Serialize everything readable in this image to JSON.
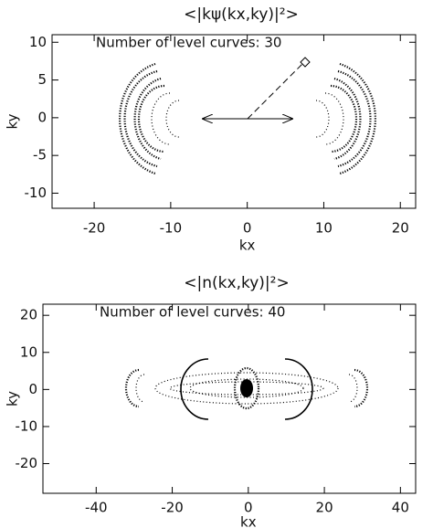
{
  "chart_data": [
    {
      "type": "contour",
      "title": "<|kψ(kx,ky)|²>",
      "annotation": "Number of level curves: 30",
      "xlabel": "kx",
      "ylabel": "ky",
      "xlim": [
        -25.5,
        22
      ],
      "ylim": [
        -12,
        11
      ],
      "xticks": [
        -20,
        -10,
        0,
        10,
        20
      ],
      "yticks": [
        -10,
        -5,
        0,
        5,
        10
      ]
    },
    {
      "type": "contour",
      "title": "<|n(kx,ky)|²>",
      "annotation": "Number of level curves: 40",
      "xlabel": "kx",
      "ylabel": "ky",
      "xlim": [
        -54,
        44
      ],
      "ylim": [
        -28,
        23
      ],
      "xticks": [
        -40,
        -20,
        0,
        20,
        40
      ],
      "yticks": [
        -20,
        -10,
        0,
        10,
        20
      ]
    }
  ]
}
